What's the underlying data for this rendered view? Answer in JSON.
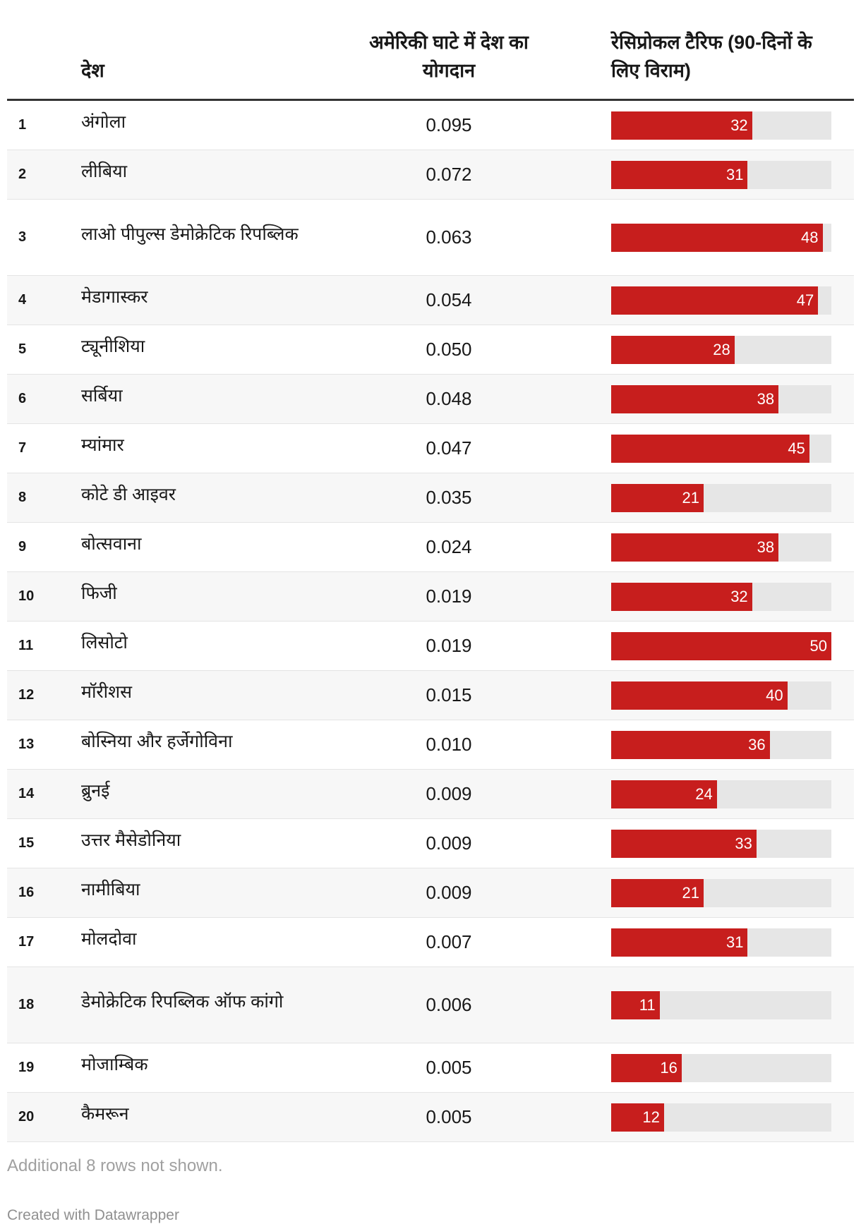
{
  "header": {
    "rank": "",
    "country": "देश",
    "contribution": "अमेरिकी घाटे में देश का योगदान",
    "tariff": "रेसिप्रोकल टैरिफ (90-दिनों के लिए विराम)"
  },
  "bar_color": "#c71e1d",
  "bar_max": 50,
  "rows": [
    {
      "rank": "1",
      "country": "अंगोला",
      "value": "0.095",
      "tariff": 32
    },
    {
      "rank": "2",
      "country": "लीबिया",
      "value": "0.072",
      "tariff": 31
    },
    {
      "rank": "3",
      "country": "लाओ पीपुल्स डेमोक्रेटिक रिपब्लिक",
      "value": "0.063",
      "tariff": 48
    },
    {
      "rank": "4",
      "country": "मेडागास्कर",
      "value": "0.054",
      "tariff": 47
    },
    {
      "rank": "5",
      "country": "ट्यूनीशिया",
      "value": "0.050",
      "tariff": 28
    },
    {
      "rank": "6",
      "country": "सर्बिया",
      "value": "0.048",
      "tariff": 38
    },
    {
      "rank": "7",
      "country": "म्यांमार",
      "value": "0.047",
      "tariff": 45
    },
    {
      "rank": "8",
      "country": "कोटे डी आइवर",
      "value": "0.035",
      "tariff": 21
    },
    {
      "rank": "9",
      "country": "बोत्सवाना",
      "value": "0.024",
      "tariff": 38
    },
    {
      "rank": "10",
      "country": "फिजी",
      "value": "0.019",
      "tariff": 32
    },
    {
      "rank": "11",
      "country": "लिसोटो",
      "value": "0.019",
      "tariff": 50
    },
    {
      "rank": "12",
      "country": "मॉरीशस",
      "value": "0.015",
      "tariff": 40
    },
    {
      "rank": "13",
      "country": "बोस्निया और हर्जेगोविना",
      "value": "0.010",
      "tariff": 36
    },
    {
      "rank": "14",
      "country": "ब्रुनई",
      "value": "0.009",
      "tariff": 24
    },
    {
      "rank": "15",
      "country": "उत्तर मैसेडोनिया",
      "value": "0.009",
      "tariff": 33
    },
    {
      "rank": "16",
      "country": "नामीबिया",
      "value": "0.009",
      "tariff": 21
    },
    {
      "rank": "17",
      "country": "मोलदोवा",
      "value": "0.007",
      "tariff": 31
    },
    {
      "rank": "18",
      "country": "डेमोक्रेटिक रिपब्लिक ऑफ कांगो",
      "value": "0.006",
      "tariff": 11
    },
    {
      "rank": "19",
      "country": "मोजाम्बिक",
      "value": "0.005",
      "tariff": 16
    },
    {
      "rank": "20",
      "country": "कैमरून",
      "value": "0.005",
      "tariff": 12
    }
  ],
  "footer": {
    "note": "Additional 8 rows not shown.",
    "credit": "Created with Datawrapper"
  }
}
